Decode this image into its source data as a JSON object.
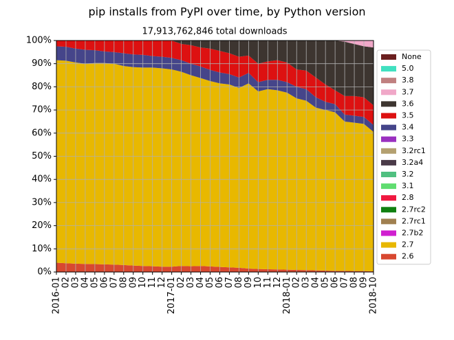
{
  "chart_data": {
    "type": "stacked-area",
    "title": "pip installs from PyPI over time, by Python version",
    "subtitle": "17,913,762,846 total downloads",
    "categories": [
      "2016-01",
      "02",
      "03",
      "04",
      "05",
      "06",
      "07",
      "08",
      "09",
      "10",
      "11",
      "12",
      "2017-01",
      "02",
      "03",
      "04",
      "05",
      "06",
      "07",
      "08",
      "09",
      "10",
      "11",
      "12",
      "2018-01",
      "02",
      "03",
      "04",
      "05",
      "06",
      "07",
      "08",
      "09",
      "2018-10"
    ],
    "ylim": [
      0,
      100
    ],
    "yticks": [
      {
        "value": 0,
        "label": "0%"
      },
      {
        "value": 10,
        "label": "10%"
      },
      {
        "value": 20,
        "label": "20%"
      },
      {
        "value": 30,
        "label": "30%"
      },
      {
        "value": 40,
        "label": "40%"
      },
      {
        "value": 50,
        "label": "50%"
      },
      {
        "value": 60,
        "label": "60%"
      },
      {
        "value": 70,
        "label": "70%"
      },
      {
        "value": 80,
        "label": "80%"
      },
      {
        "value": 90,
        "label": "90%"
      },
      {
        "value": 100,
        "label": "100%"
      }
    ],
    "grid": true,
    "legend": "right",
    "series": [
      {
        "name": "None",
        "color": "#6b1f1f",
        "values": [
          0,
          0,
          0,
          0,
          0,
          0,
          0,
          0,
          0,
          0,
          0,
          0,
          0,
          0,
          0,
          0,
          0,
          0,
          0,
          0,
          0,
          0,
          0,
          0,
          0,
          0,
          0,
          0,
          0,
          0,
          0,
          0,
          0,
          0
        ]
      },
      {
        "name": "5.0",
        "color": "#40e0c0",
        "values": [
          0,
          0,
          0,
          0,
          0,
          0,
          0,
          0,
          0,
          0,
          0,
          0,
          0,
          0,
          0,
          0,
          0,
          0,
          0,
          0,
          0,
          0,
          0,
          0,
          0,
          0,
          0,
          0,
          0,
          0,
          0,
          0,
          0,
          0
        ]
      },
      {
        "name": "3.8",
        "color": "#c08080",
        "values": [
          0,
          0,
          0,
          0,
          0,
          0,
          0,
          0,
          0,
          0,
          0,
          0,
          0,
          0,
          0,
          0,
          0,
          0,
          0,
          0,
          0,
          0,
          0,
          0,
          0,
          0,
          0,
          0,
          0,
          0,
          0,
          0,
          0,
          0
        ]
      },
      {
        "name": "3.7",
        "color": "#f0a8c8",
        "values": [
          0,
          0,
          0,
          0,
          0,
          0,
          0,
          0,
          0,
          0,
          0,
          0,
          0,
          0,
          0,
          0,
          0,
          0,
          0,
          0,
          0,
          0,
          0,
          0,
          0,
          0,
          0,
          0,
          0,
          0,
          0.5,
          1.5,
          2.5,
          3
        ]
      },
      {
        "name": "3.6",
        "color": "#3d3530",
        "values": [
          0,
          0,
          0,
          0,
          0,
          0,
          0,
          0,
          0,
          0,
          0,
          0,
          0,
          1.5,
          2,
          3,
          3.5,
          4.5,
          5.5,
          7,
          6.5,
          10,
          9,
          8.5,
          9.5,
          12.5,
          13,
          16,
          19,
          21.5,
          23.5,
          22.5,
          22,
          25
        ]
      },
      {
        "name": "3.5",
        "color": "#dd1111",
        "values": [
          2.5,
          2.7,
          3.5,
          4,
          4.2,
          4.7,
          5,
          5.5,
          6,
          6.2,
          6.7,
          7,
          7.5,
          7,
          8,
          8.2,
          9.2,
          9.3,
          9,
          9,
          7.5,
          8,
          8,
          8.5,
          8.5,
          7.5,
          8,
          8.5,
          7.5,
          6,
          8,
          8.5,
          8.5,
          8.5
        ]
      },
      {
        "name": "3.4",
        "color": "#45458a",
        "values": [
          6,
          6,
          6,
          6,
          5.5,
          5,
          5,
          5.5,
          5.5,
          5.5,
          5,
          5,
          5,
          5,
          5,
          5,
          4.8,
          4.7,
          4.5,
          4.5,
          4.5,
          4,
          4,
          4.5,
          4.5,
          5,
          5,
          4.5,
          3.5,
          3.5,
          3,
          3,
          3,
          3
        ]
      },
      {
        "name": "3.3",
        "color": "#9a30c0",
        "values": [
          0,
          0,
          0,
          0,
          0,
          0,
          0,
          0,
          0,
          0,
          0,
          0,
          0,
          0,
          0,
          0,
          0,
          0,
          0,
          0,
          0,
          0,
          0,
          0,
          0,
          0,
          0,
          0,
          0,
          0,
          0,
          0,
          0,
          0
        ]
      },
      {
        "name": "3.2rc1",
        "color": "#b4a070",
        "values": [
          0,
          0,
          0,
          0,
          0,
          0,
          0,
          0,
          0,
          0,
          0,
          0,
          0,
          0,
          0,
          0,
          0,
          0,
          0,
          0,
          0,
          0,
          0,
          0,
          0,
          0,
          0,
          0,
          0,
          0,
          0,
          0,
          0,
          0
        ]
      },
      {
        "name": "3.2a4",
        "color": "#4a3a48",
        "values": [
          0,
          0,
          0,
          0,
          0,
          0,
          0,
          0,
          0,
          0,
          0,
          0,
          0,
          0,
          0,
          0,
          0,
          0,
          0,
          0,
          0,
          0,
          0,
          0,
          0,
          0,
          0,
          0,
          0,
          0,
          0,
          0,
          0,
          0
        ]
      },
      {
        "name": "3.2",
        "color": "#50c080",
        "values": [
          0,
          0,
          0,
          0,
          0,
          0,
          0,
          0,
          0,
          0,
          0,
          0,
          0,
          0,
          0,
          0,
          0,
          0,
          0,
          0,
          0,
          0,
          0,
          0,
          0,
          0,
          0,
          0,
          0,
          0,
          0,
          0,
          0,
          0
        ]
      },
      {
        "name": "3.1",
        "color": "#60dd70",
        "values": [
          0,
          0,
          0,
          0,
          0,
          0,
          0,
          0,
          0,
          0,
          0,
          0,
          0,
          0,
          0,
          0,
          0,
          0,
          0,
          0,
          0,
          0,
          0,
          0,
          0,
          0,
          0,
          0,
          0,
          0,
          0,
          0,
          0,
          0
        ]
      },
      {
        "name": "2.8",
        "color": "#f01840",
        "values": [
          0,
          0,
          0,
          0,
          0,
          0,
          0,
          0,
          0,
          0,
          0,
          0,
          0,
          0,
          0,
          0,
          0,
          0,
          0,
          0,
          0,
          0,
          0,
          0,
          0,
          0,
          0,
          0,
          0,
          0,
          0,
          0,
          0,
          0
        ]
      },
      {
        "name": "2.7rc2",
        "color": "#108010",
        "values": [
          0,
          0,
          0,
          0,
          0,
          0,
          0,
          0,
          0,
          0,
          0,
          0,
          0,
          0,
          0,
          0,
          0,
          0,
          0,
          0,
          0,
          0,
          0,
          0,
          0,
          0,
          0,
          0,
          0,
          0,
          0,
          0,
          0,
          0
        ]
      },
      {
        "name": "2.7rc1",
        "color": "#a08050",
        "values": [
          0,
          0,
          0,
          0,
          0,
          0,
          0,
          0,
          0,
          0,
          0,
          0,
          0,
          0,
          0,
          0,
          0,
          0,
          0,
          0,
          0,
          0,
          0,
          0,
          0,
          0,
          0,
          0,
          0,
          0,
          0,
          0,
          0,
          0
        ]
      },
      {
        "name": "2.7b2",
        "color": "#d020d0",
        "values": [
          0,
          0,
          0,
          0,
          0,
          0,
          0,
          0,
          0,
          0,
          0,
          0,
          0,
          0,
          0,
          0,
          0,
          0,
          0,
          0,
          0,
          0,
          0,
          0,
          0,
          0,
          0,
          0,
          0,
          0,
          0,
          0,
          0,
          0
        ]
      },
      {
        "name": "2.7",
        "color": "#e8b800",
        "values": [
          87.5,
          87.5,
          86.9,
          86.5,
          86.9,
          87,
          86.8,
          86,
          85.7,
          85.7,
          85.8,
          85.7,
          85.2,
          83.9,
          82.5,
          81.2,
          80.1,
          79.3,
          79,
          77.7,
          80,
          76.7,
          77.8,
          77.4,
          76.5,
          74.1,
          73.2,
          70.3,
          69.4,
          68.5,
          64.5,
          64.1,
          63.6,
          60.2
        ]
      },
      {
        "name": "2.6",
        "color": "#d84830",
        "values": [
          4,
          3.8,
          3.6,
          3.5,
          3.4,
          3.3,
          3.2,
          3,
          2.8,
          2.6,
          2.5,
          2.3,
          2.3,
          2.6,
          2.5,
          2.6,
          2.4,
          2.2,
          2,
          1.8,
          1.5,
          1.3,
          1.2,
          1.1,
          1,
          0.9,
          0.8,
          0.7,
          0.6,
          0.5,
          0.5,
          0.4,
          0.4,
          0.3
        ]
      }
    ]
  }
}
